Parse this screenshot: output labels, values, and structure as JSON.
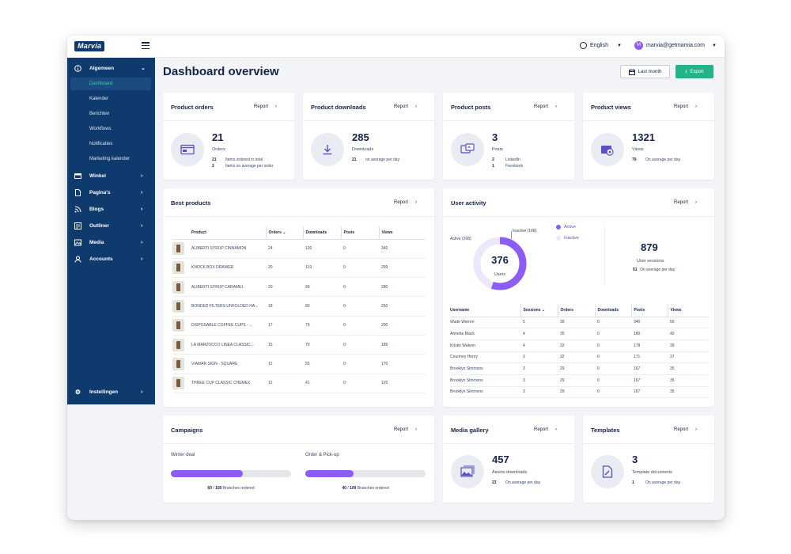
{
  "app": {
    "logo": "Marvia",
    "language": "English",
    "user_initial": "M",
    "user_email": "marvia@getmarvia.com"
  },
  "sidebar": {
    "groups": [
      {
        "label": "Algemeen",
        "icon": "info-icon",
        "sub": [
          "Dashboard",
          "Kalender",
          "Berichten",
          "Workflows",
          "Notificaties",
          "Marketing kalender"
        ]
      },
      {
        "label": "Winkel",
        "icon": "store-icon"
      },
      {
        "label": "Pagina's",
        "icon": "page-icon"
      },
      {
        "label": "Blogs",
        "icon": "rss-icon"
      },
      {
        "label": "Outliner",
        "icon": "outline-icon"
      },
      {
        "label": "Media",
        "icon": "media-icon"
      },
      {
        "label": "Accounts",
        "icon": "user-icon"
      }
    ],
    "settings": "Instellingen"
  },
  "page": {
    "title": "Dashboard overview",
    "last_month": "Last month",
    "export": "Export"
  },
  "report": "Report",
  "stats": [
    {
      "title": "Product orders",
      "value": "21",
      "label": "Orders",
      "details": [
        [
          "21",
          "Items ordered in total"
        ],
        [
          "2",
          "Items on average per order"
        ]
      ]
    },
    {
      "title": "Product downloads",
      "value": "285",
      "label": "Downloads",
      "details": [
        [
          "21",
          "on average per day"
        ]
      ]
    },
    {
      "title": "Product posts",
      "value": "3",
      "label": "Posts",
      "details": [
        [
          "2",
          "LinkedIn"
        ],
        [
          "1",
          "Facebook"
        ]
      ]
    },
    {
      "title": "Product views",
      "value": "1321",
      "label": "Views",
      "details": [
        [
          "79",
          "On average per day"
        ]
      ]
    }
  ],
  "best_products": {
    "title": "Best products",
    "headers": [
      "Product",
      "Orders",
      "Downloads",
      "Posts",
      "Views"
    ],
    "rows": [
      [
        "ALIBERTI SYRUP CINNAMON",
        "24",
        "120",
        "0",
        "340"
      ],
      [
        "KNOCK BOX DRAWER",
        "20",
        "119",
        "0",
        "299"
      ],
      [
        "ALIBERTI SYRUP CARAMEL",
        "20",
        "99",
        "0",
        "280"
      ],
      [
        "BONDED FILTERS UNFOLDED HA...",
        "18",
        "80",
        "0",
        "250"
      ],
      [
        "DISPOSABLE COFFEE CUPS - ...",
        "17",
        "79",
        "0",
        "200"
      ],
      [
        "LA MARZOCCO LINEA CLASSIC...",
        "15",
        "70",
        "0",
        "189"
      ],
      [
        "VIAMAR SIGN - SQUARE",
        "12",
        "55",
        "0",
        "170"
      ],
      [
        "THREE CUP CLASSIC CHEMEX",
        "12",
        "41",
        "0",
        "120"
      ]
    ]
  },
  "user_activity": {
    "title": "User activity",
    "total": "376",
    "total_label": "Users",
    "active_label": "Active (208)",
    "inactive_label": "Inactive (168)",
    "active": 208,
    "inactive": 168,
    "legend_active": "Active",
    "legend_inactive": "Inactive",
    "sessions": "879",
    "sessions_label": "User sessions",
    "sessions_avg": "51",
    "sessions_avg_label": "On average per day",
    "headers": [
      "Username",
      "Sessions",
      "Orders",
      "Downloads",
      "Posts",
      "Views"
    ],
    "rows": [
      [
        "Wade Warren",
        "5",
        "39",
        "0",
        "340",
        "56"
      ],
      [
        "Annette Black",
        "4",
        "35",
        "0",
        "180",
        "40"
      ],
      [
        "Kristin Watson",
        "4",
        "32",
        "0",
        "178",
        "39"
      ],
      [
        "Courtney Henry",
        "3",
        "32",
        "0",
        "171",
        "37"
      ],
      [
        "Brooklyn Simmons",
        "3",
        "29",
        "0",
        "167",
        "35"
      ],
      [
        "Brooklyn Simmons",
        "3",
        "29",
        "0",
        "167",
        "35"
      ],
      [
        "Brooklyn Simmons",
        "3",
        "29",
        "0",
        "167",
        "35"
      ]
    ]
  },
  "campaigns": {
    "title": "Campaigns",
    "items": [
      {
        "name": "Winter deal",
        "done": "60",
        "total": "100",
        "progress": 0.6,
        "suffix": "Branches ordered"
      },
      {
        "name": "Order & Pick-up",
        "done": "40",
        "total": "100",
        "progress": 0.4,
        "suffix": "Branches ordered"
      }
    ]
  },
  "media": {
    "title": "Media gallery",
    "value": "457",
    "label": "Assets downloads",
    "avg": "23",
    "avg_label": "On average per day"
  },
  "templates": {
    "title": "Templates",
    "value": "3",
    "label": "Template documents",
    "avg": "1",
    "avg_label": "On average per day"
  },
  "colors": {
    "navy": "#0f3a6e",
    "green": "#22b387",
    "purple": "#8b5cf6",
    "purple_light": "#ede7fb"
  }
}
